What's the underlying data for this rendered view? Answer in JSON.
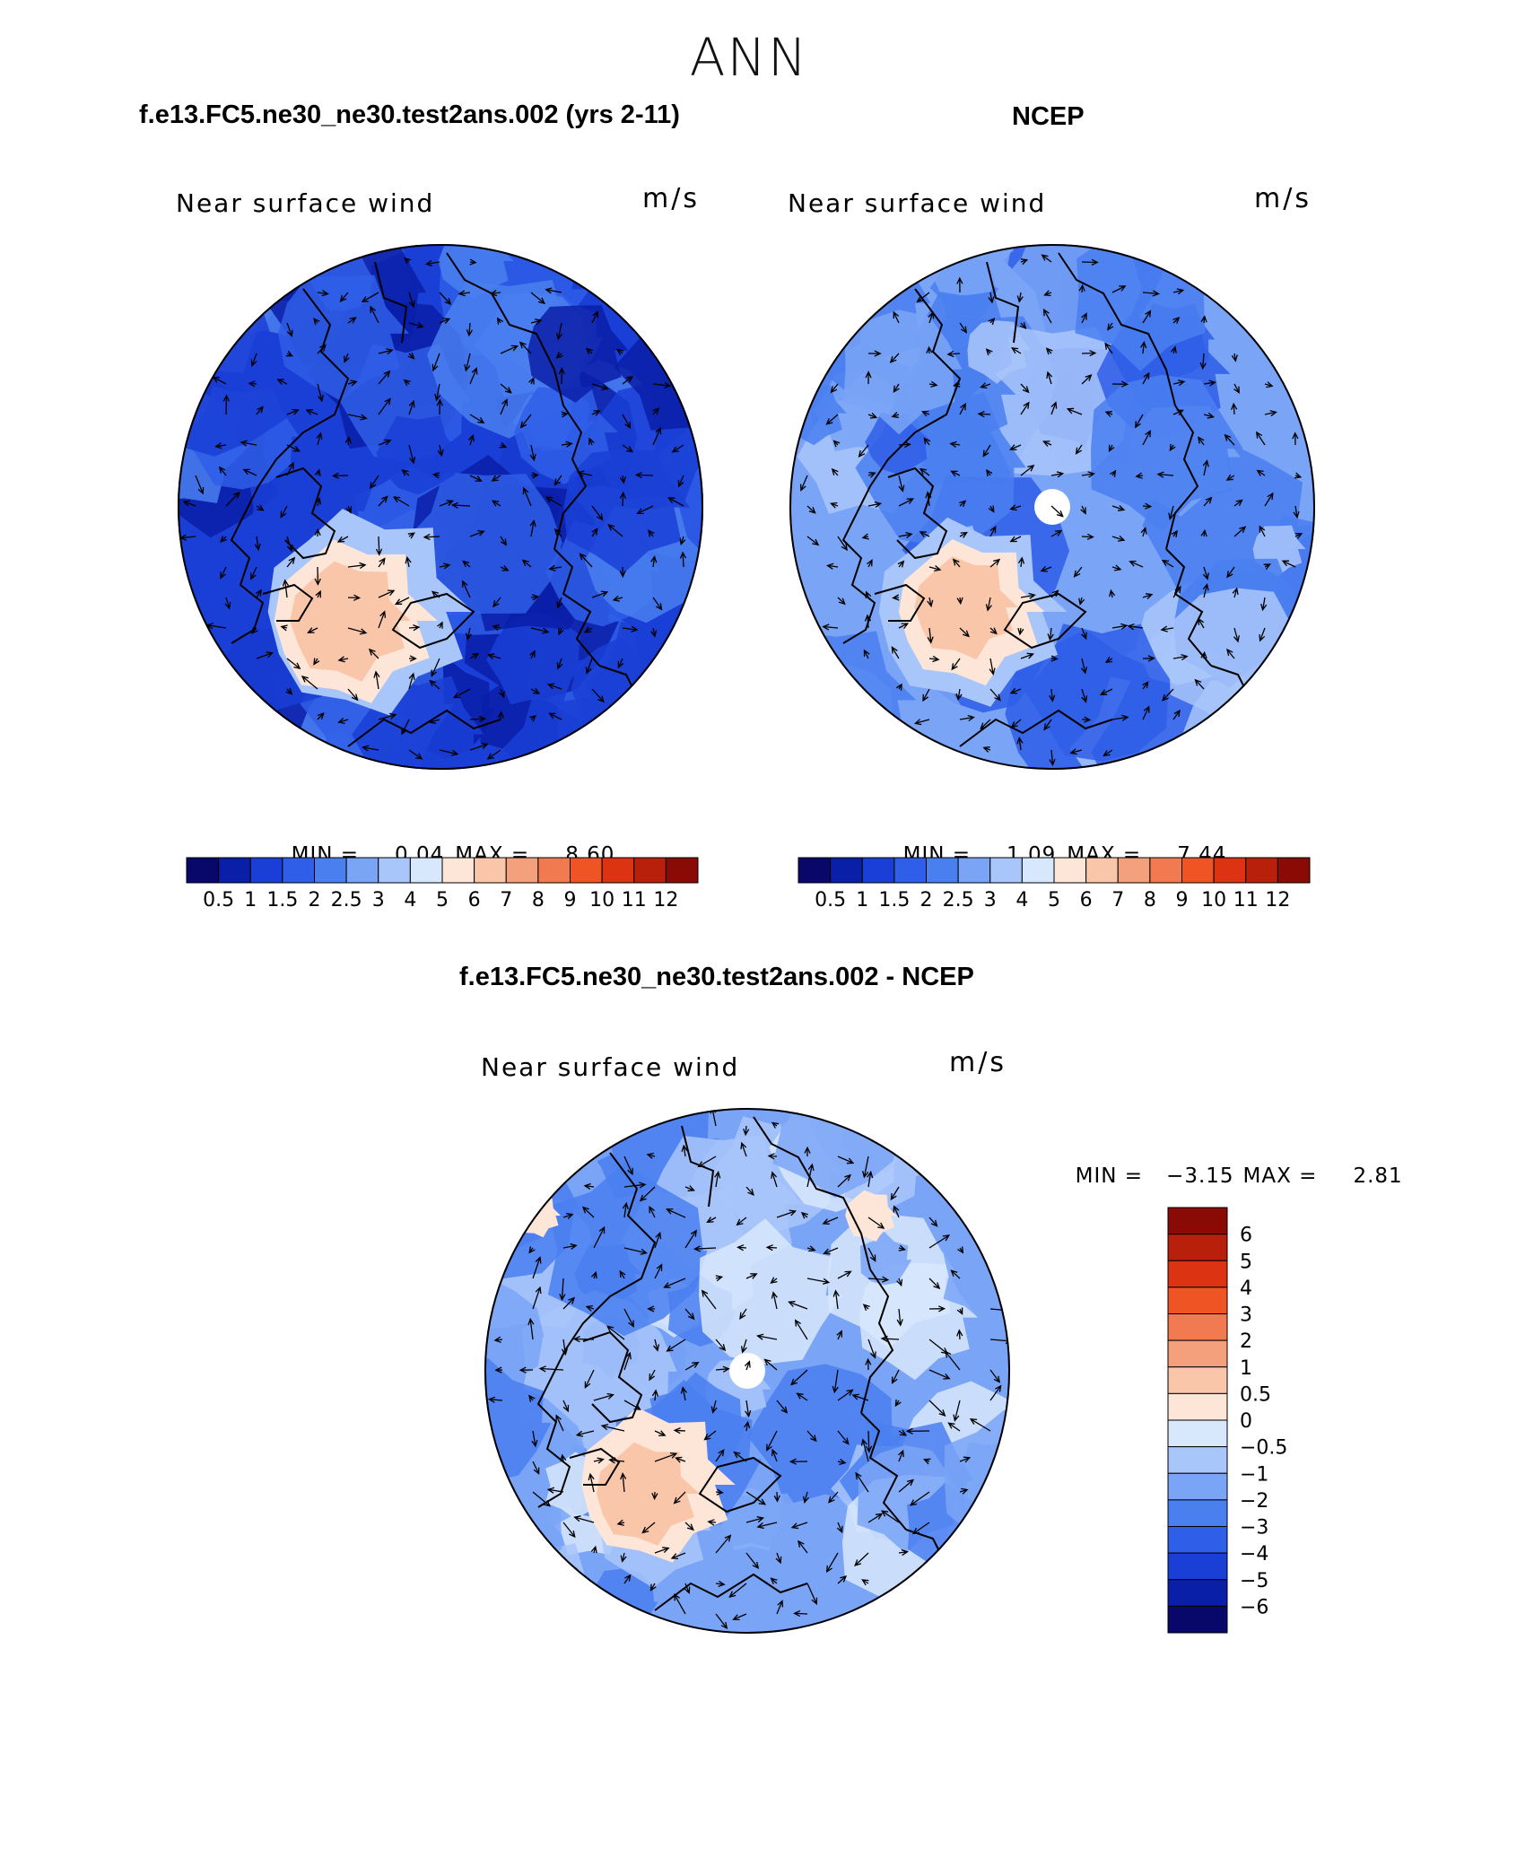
{
  "figure": {
    "title": "ANN"
  },
  "colors": {
    "diverging": [
      "#08086b",
      "#0a1fa8",
      "#1a3fd6",
      "#2f5ee8",
      "#4a7ff0",
      "#7aa4f6",
      "#a9c6fa",
      "#d8e8fc",
      "#fde6d8",
      "#f9c6aa",
      "#f5a07c",
      "#f27a50",
      "#ef5424",
      "#dc3413",
      "#b9200c",
      "#8a0a05"
    ],
    "land": "#000000"
  },
  "panels": [
    {
      "title": "f.e13.FC5.ne30_ne30.test2ans.002 (yrs 2-11)",
      "plot_label": "Near surface wind",
      "units": "m/s",
      "min_label": "MIN =",
      "min_value": "0.04",
      "max_label": "MAX =",
      "max_value": "8.60",
      "colorbar_labels": [
        "0.5",
        "1",
        "1.5",
        "2",
        "2.5",
        "3",
        "4",
        "5",
        "6",
        "7",
        "8",
        "9",
        "10",
        "11",
        "12"
      ]
    },
    {
      "title": "NCEP",
      "plot_label": "Near surface wind",
      "units": "m/s",
      "min_label": "MIN =",
      "min_value": "1.09",
      "max_label": "MAX =",
      "max_value": "7.44",
      "colorbar_labels": [
        "0.5",
        "1",
        "1.5",
        "2",
        "2.5",
        "3",
        "4",
        "5",
        "6",
        "7",
        "8",
        "9",
        "10",
        "11",
        "12"
      ]
    },
    {
      "title": "f.e13.FC5.ne30_ne30.test2ans.002 - NCEP",
      "plot_label": "Near surface wind",
      "units": "m/s",
      "min_label": "MIN =",
      "min_value": "−3.15",
      "max_label": "MAX =",
      "max_value": "2.81",
      "colorbar_labels": [
        "6",
        "5",
        "4",
        "3",
        "2",
        "1",
        "0.5",
        "0",
        "−0.5",
        "−1",
        "−2",
        "−3",
        "−4",
        "−5",
        "−6"
      ]
    }
  ]
}
